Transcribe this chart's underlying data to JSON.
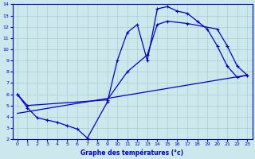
{
  "xlabel": "Graphe des températures (°c)",
  "bg_color": "#cce8ec",
  "grid_color": "#aacccc",
  "line_color": "#0000cc",
  "xlim": [
    -0.5,
    23.5
  ],
  "ylim": [
    2,
    14
  ],
  "xticks": [
    0,
    1,
    2,
    3,
    4,
    5,
    6,
    7,
    8,
    9,
    10,
    11,
    12,
    13,
    14,
    15,
    16,
    17,
    18,
    19,
    20,
    21,
    22,
    23
  ],
  "yticks": [
    2,
    3,
    4,
    5,
    6,
    7,
    8,
    9,
    10,
    11,
    12,
    13,
    14
  ],
  "curve1_x": [
    0,
    1,
    2,
    3,
    4,
    5,
    6,
    7,
    9,
    10,
    11,
    12,
    13,
    14,
    15,
    16,
    17,
    18,
    19,
    20,
    21,
    22,
    23
  ],
  "curve1_y": [
    6.0,
    4.8,
    3.9,
    3.7,
    3.5,
    3.2,
    2.9,
    2.1,
    5.3,
    9.0,
    11.5,
    12.2,
    9.0,
    13.6,
    13.8,
    13.4,
    13.2,
    12.5,
    11.8,
    10.3,
    8.5,
    7.5,
    7.7
  ],
  "curve2_x": [
    0,
    1,
    9,
    11,
    13,
    14,
    15,
    17,
    20,
    21,
    22,
    23
  ],
  "curve2_y": [
    6.0,
    5.0,
    5.5,
    8.0,
    9.5,
    12.2,
    12.5,
    12.3,
    11.8,
    10.3,
    8.5,
    7.7
  ],
  "curve3_x": [
    0,
    23
  ],
  "curve3_y": [
    4.3,
    7.7
  ]
}
